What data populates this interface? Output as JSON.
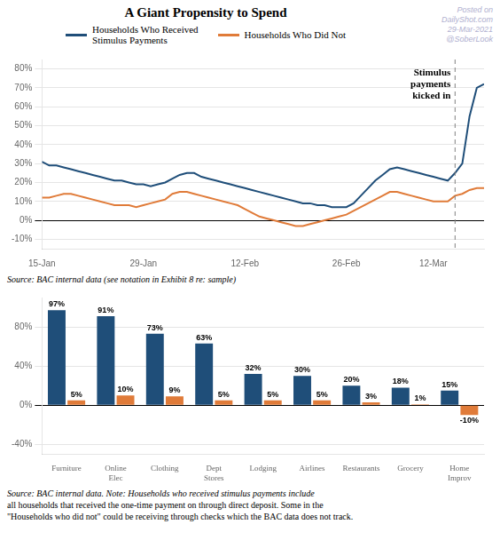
{
  "chart_data": [
    {
      "type": "line",
      "title": "A Giant Propensity to Spend",
      "x": [
        0,
        1,
        2,
        3,
        4,
        5,
        6,
        7,
        8,
        9,
        10,
        11,
        12,
        13,
        14,
        15,
        16,
        17,
        18,
        19,
        20,
        21,
        22,
        23,
        24,
        25,
        26,
        27,
        28,
        29,
        30,
        31,
        32,
        33,
        34,
        35,
        36,
        37,
        38,
        39,
        40,
        41,
        42,
        43,
        44,
        45,
        46,
        47,
        48,
        49,
        50,
        51,
        52,
        53,
        54,
        55,
        56,
        57,
        58,
        59,
        60,
        61
      ],
      "series": [
        {
          "name": "Households Who Received\nStimulus Payments",
          "color": "#1f4e79",
          "values": [
            31,
            29,
            29,
            28,
            27,
            26,
            25,
            24,
            23,
            22,
            21,
            21,
            20,
            19,
            19,
            18,
            19,
            20,
            22,
            24,
            25,
            25,
            23,
            22,
            21,
            20,
            19,
            18,
            17,
            16,
            15,
            14,
            13,
            12,
            11,
            10,
            9,
            9,
            8,
            8,
            7,
            7,
            7,
            9,
            13,
            17,
            21,
            24,
            27,
            28,
            27,
            26,
            25,
            24,
            23,
            22,
            21,
            25,
            30,
            55,
            70,
            72
          ]
        },
        {
          "name": "Households Who Did Not",
          "color": "#e07b39",
          "values": [
            12,
            12,
            13,
            14,
            14,
            13,
            12,
            11,
            10,
            9,
            8,
            8,
            8,
            7,
            8,
            9,
            10,
            11,
            14,
            15,
            15,
            14,
            13,
            12,
            11,
            10,
            9,
            8,
            6,
            4,
            2,
            1,
            0,
            -1,
            -2,
            -3,
            -3,
            -2,
            -1,
            0,
            1,
            2,
            3,
            5,
            7,
            9,
            11,
            13,
            15,
            15,
            14,
            13,
            12,
            11,
            10,
            10,
            10,
            13,
            14,
            16,
            17,
            17
          ]
        }
      ],
      "xlim": [
        0,
        61
      ],
      "xticks": [
        {
          "value": 0,
          "label": "15-Jan"
        },
        {
          "value": 14,
          "label": "29-Jan"
        },
        {
          "value": 28,
          "label": "12-Feb"
        },
        {
          "value": 42,
          "label": "26-Feb"
        },
        {
          "value": 54,
          "label": "12-Mar"
        }
      ],
      "ylim": [
        -15,
        85
      ],
      "yticks": [
        {
          "value": -10,
          "label": "-10%"
        },
        {
          "value": 0,
          "label": "0%"
        },
        {
          "value": 10,
          "label": "10%"
        },
        {
          "value": 20,
          "label": "20%"
        },
        {
          "value": 30,
          "label": "30%"
        },
        {
          "value": 40,
          "label": "40%"
        },
        {
          "value": 50,
          "label": "50%"
        },
        {
          "value": 60,
          "label": "60%"
        },
        {
          "value": 70,
          "label": "70%"
        },
        {
          "value": 80,
          "label": "80%"
        }
      ],
      "grid": true,
      "legend": "top",
      "annotations": [
        {
          "x": 57,
          "text": "Stimulus\npayments\nkicked in"
        }
      ],
      "watermark": [
        "Posted on",
        "DailyShot.com",
        "29-Mar-2021",
        "@SoberLook"
      ],
      "source": [
        "Source:  BAC internal data (see notation in Exhibit 8 re: sample)"
      ]
    },
    {
      "type": "bar",
      "categories": [
        "Furniture",
        "Online\nElec",
        "Clothing",
        "Dept\nStores",
        "Lodging",
        "Airlines",
        "Restaurants",
        "Grocery",
        "Home\nImprov"
      ],
      "series": [
        {
          "color": "#1f4e79",
          "values": [
            97,
            91,
            73,
            63,
            32,
            30,
            20,
            18,
            15
          ],
          "value_labels": [
            "97%",
            "91%",
            "73%",
            "63%",
            "32%",
            "30%",
            "20%",
            "18%",
            "15%"
          ]
        },
        {
          "color": "#e07b39",
          "values": [
            5,
            10,
            9,
            5,
            5,
            5,
            3,
            1,
            -10
          ],
          "value_labels": [
            "5%",
            "10%",
            "9%",
            "5%",
            "5%",
            "5%",
            "3%",
            "1%",
            "-10%"
          ]
        }
      ],
      "ylim": [
        -50,
        110
      ],
      "yticks": [
        {
          "value": -40,
          "label": "-40%"
        },
        {
          "value": 0,
          "label": "0%"
        },
        {
          "value": 40,
          "label": "40%"
        },
        {
          "value": 80,
          "label": "80%"
        }
      ],
      "grid": true,
      "data_labels": true,
      "source": [
        "Source:  BAC internal data. Note: Households who received stimulus payments include",
        "all households that received the one-time payment on through direct deposit. Some in the",
        "\"Households who did not\" could be receiving through checks which the BAC data does not track."
      ]
    }
  ]
}
